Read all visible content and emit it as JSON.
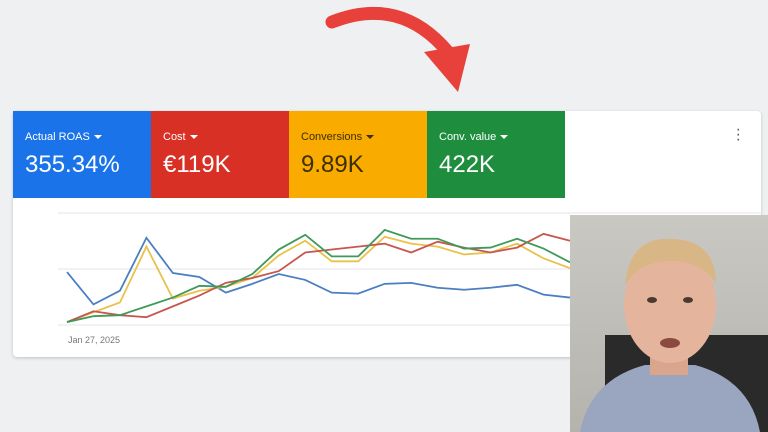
{
  "scorecards": [
    {
      "label": "Actual ROAS",
      "value": "355.34%",
      "color": "#1a73e8"
    },
    {
      "label": "Cost",
      "value": "€119K",
      "color": "#d93025"
    },
    {
      "label": "Conversions",
      "value": "9.89K",
      "color": "#f9ab00"
    },
    {
      "label": "Conv. value",
      "value": "422K",
      "color": "#1e8e3e"
    }
  ],
  "more_icon": "more-vert-icon",
  "chart_data": {
    "type": "line",
    "x_start_label": "Jan 27, 2025",
    "grid": true,
    "series": [
      {
        "metric": "Actual ROAS",
        "color": "#4a7fc1",
        "values": [
          54,
          21,
          35,
          89,
          53,
          49,
          33,
          42,
          52,
          46,
          33,
          32,
          42,
          43,
          38,
          36,
          38,
          41,
          31,
          28
        ]
      },
      {
        "metric": "Conversions",
        "color": "#e8c24a",
        "values": [
          3,
          13,
          23,
          80,
          27,
          35,
          39,
          48,
          71,
          86,
          65,
          65,
          90,
          83,
          80,
          72,
          74,
          83,
          68,
          58
        ]
      },
      {
        "metric": "Cost",
        "color": "#c7564f",
        "values": [
          3,
          14,
          10,
          8,
          19,
          30,
          43,
          48,
          55,
          74,
          77,
          80,
          83,
          74,
          85,
          79,
          74,
          79,
          93,
          86
        ]
      },
      {
        "metric": "Conv. value",
        "color": "#3f9a5a",
        "values": [
          3,
          9,
          10,
          19,
          28,
          40,
          39,
          52,
          77,
          92,
          70,
          70,
          97,
          88,
          88,
          78,
          79,
          88,
          78,
          64
        ]
      }
    ]
  }
}
